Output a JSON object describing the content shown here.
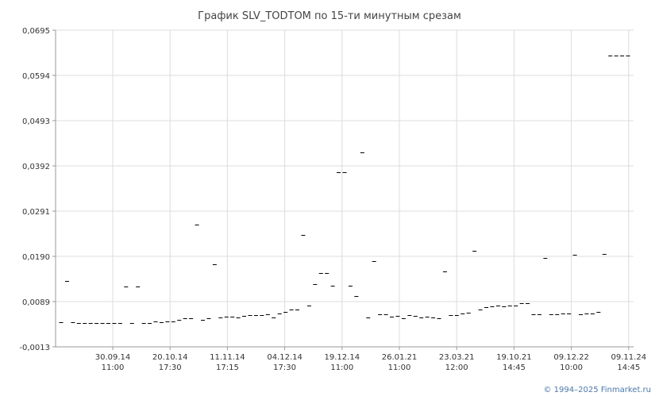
{
  "chart_data": {
    "type": "scatter",
    "title": "График SLV_TODTOM по 15-ти минутным срезам",
    "xlabel": "",
    "ylabel": "",
    "ylim": [
      -0.0013,
      0.0695
    ],
    "yticks": [
      "0,0695",
      "0,0594",
      "0,0493",
      "0,0392",
      "0,0291",
      "0,0190",
      "0,0089",
      "-0,0013"
    ],
    "xticks": [
      {
        "date": "30.09.14",
        "time": "11:00"
      },
      {
        "date": "20.10.14",
        "time": "17:30"
      },
      {
        "date": "11.11.14",
        "time": "17:15"
      },
      {
        "date": "04.12.14",
        "time": "17:30"
      },
      {
        "date": "19.12.14",
        "time": "11:00"
      },
      {
        "date": "26.01.21",
        "time": "11:00"
      },
      {
        "date": "23.03.21",
        "time": "12:00"
      },
      {
        "date": "19.10.21",
        "time": "14:45"
      },
      {
        "date": "09.12.22",
        "time": "10:00"
      },
      {
        "date": "09.11.24",
        "time": "14:45"
      }
    ],
    "grid": true,
    "marker": "dash",
    "series": [
      {
        "color": "#000000",
        "values": [
          0.0042,
          0.0134,
          0.0042,
          0.004,
          0.004,
          0.004,
          0.004,
          0.0041,
          0.0041,
          0.0041,
          0.004,
          0.0122,
          0.004,
          0.0122,
          0.0041,
          0.0041,
          0.0043,
          0.0042,
          0.0043,
          0.0044,
          0.0047,
          0.005,
          0.005,
          0.0261,
          0.0048,
          0.005,
          0.0171,
          0.0053,
          0.0054,
          0.0055,
          0.0053,
          0.0057,
          0.0058,
          0.0058,
          0.0058,
          0.006,
          0.0052,
          0.0061,
          0.0065,
          0.007,
          0.007,
          0.0237,
          0.008,
          0.0127,
          0.0152,
          0.0152,
          0.0124,
          0.0378,
          0.0378,
          0.0124,
          0.0101,
          0.0422,
          0.0052,
          0.0178,
          0.006,
          0.0059,
          0.0055,
          0.0057,
          0.005,
          0.0058,
          0.0057,
          0.0053,
          0.0054,
          0.0052,
          0.005,
          0.0155,
          0.0058,
          0.0058,
          0.0061,
          0.0064,
          0.0201,
          0.007,
          0.0076,
          0.0077,
          0.0079,
          0.0077,
          0.008,
          0.008,
          0.0084,
          0.0085,
          0.0059,
          0.0059,
          0.0185,
          0.006,
          0.006,
          0.0061,
          0.0061,
          0.0193,
          0.006,
          0.0062,
          0.0062,
          0.0065,
          0.0194,
          0.0639,
          0.0639,
          0.0639,
          0.0639
        ]
      }
    ]
  },
  "footer": {
    "copyright": "© 1994–2025 Finmarket.ru"
  }
}
